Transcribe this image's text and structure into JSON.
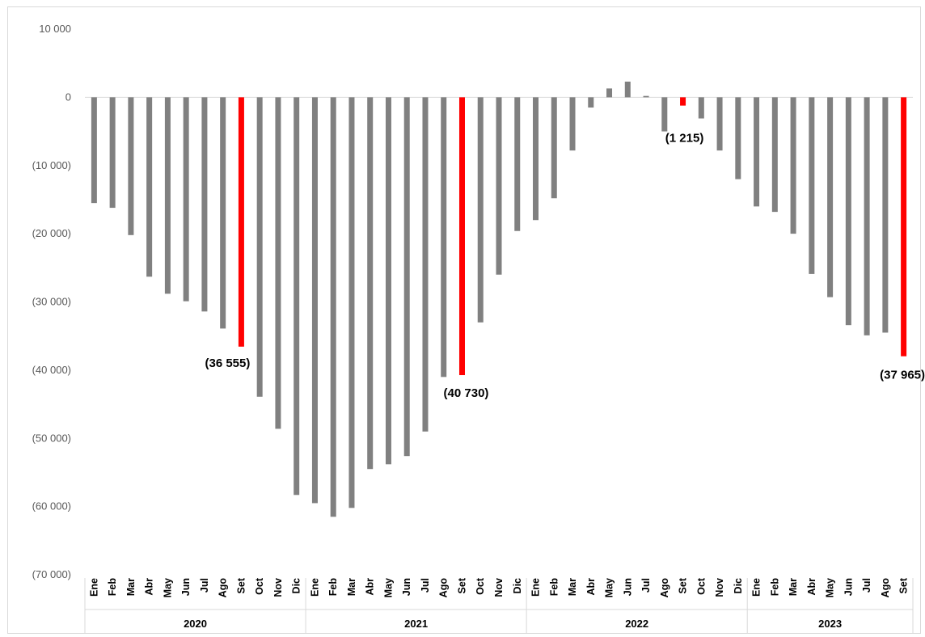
{
  "chart_data": {
    "type": "bar",
    "title": "",
    "xlabel": "",
    "ylabel": "",
    "ylim": [
      -70000,
      10000
    ],
    "yticks": [
      10000,
      0,
      -10000,
      -20000,
      -30000,
      -40000,
      -50000,
      -60000,
      -70000
    ],
    "ytick_labels": [
      "10 000",
      "0",
      "(10 000)",
      "(20 000)",
      "(30 000)",
      "(40 000)",
      "(50 000)",
      "(60 000)",
      "(70 000)"
    ],
    "grid": false,
    "legend": "none",
    "colors": {
      "default": "#808080",
      "highlight": "#ff0000"
    },
    "groups": [
      {
        "year": "2020",
        "months": [
          "Ene",
          "Feb",
          "Mar",
          "Abr",
          "May",
          "Jun",
          "Jul",
          "Ago",
          "Set",
          "Oct",
          "Nov",
          "Dic"
        ]
      },
      {
        "year": "2021",
        "months": [
          "Ene",
          "Feb",
          "Mar",
          "Abr",
          "May",
          "Jun",
          "Jul",
          "Ago",
          "Set",
          "Oct",
          "Nov",
          "Dic"
        ]
      },
      {
        "year": "2022",
        "months": [
          "Ene",
          "Feb",
          "Mar",
          "Abr",
          "May",
          "Jun",
          "Jul",
          "Ago",
          "Set",
          "Oct",
          "Nov",
          "Dic"
        ]
      },
      {
        "year": "2023",
        "months": [
          "Ene",
          "Feb",
          "Mar",
          "Abr",
          "May",
          "Jun",
          "Jul",
          "Ago",
          "Set"
        ]
      }
    ],
    "values": [
      -15500,
      -16200,
      -20200,
      -26300,
      -28800,
      -29900,
      -31400,
      -33900,
      -36555,
      -43900,
      -48600,
      -58300,
      -59500,
      -61500,
      -60200,
      -54500,
      -53800,
      -52600,
      -49000,
      -41000,
      -40730,
      -33000,
      -26000,
      -19600,
      -18000,
      -14800,
      -7800,
      -1500,
      1300,
      2300,
      200,
      -5000,
      -1215,
      -3100,
      -7800,
      -12000,
      -16000,
      -16800,
      -20000,
      -25900,
      -29300,
      -33400,
      -34900,
      -34500,
      -37965
    ],
    "highlight_indices": [
      8,
      20,
      32,
      44
    ],
    "data_labels": [
      {
        "index": 8,
        "text": "(36 555)"
      },
      {
        "index": 20,
        "text": "(40 730)"
      },
      {
        "index": 32,
        "text": "(1 215)"
      },
      {
        "index": 44,
        "text": "(37 965)"
      }
    ]
  }
}
